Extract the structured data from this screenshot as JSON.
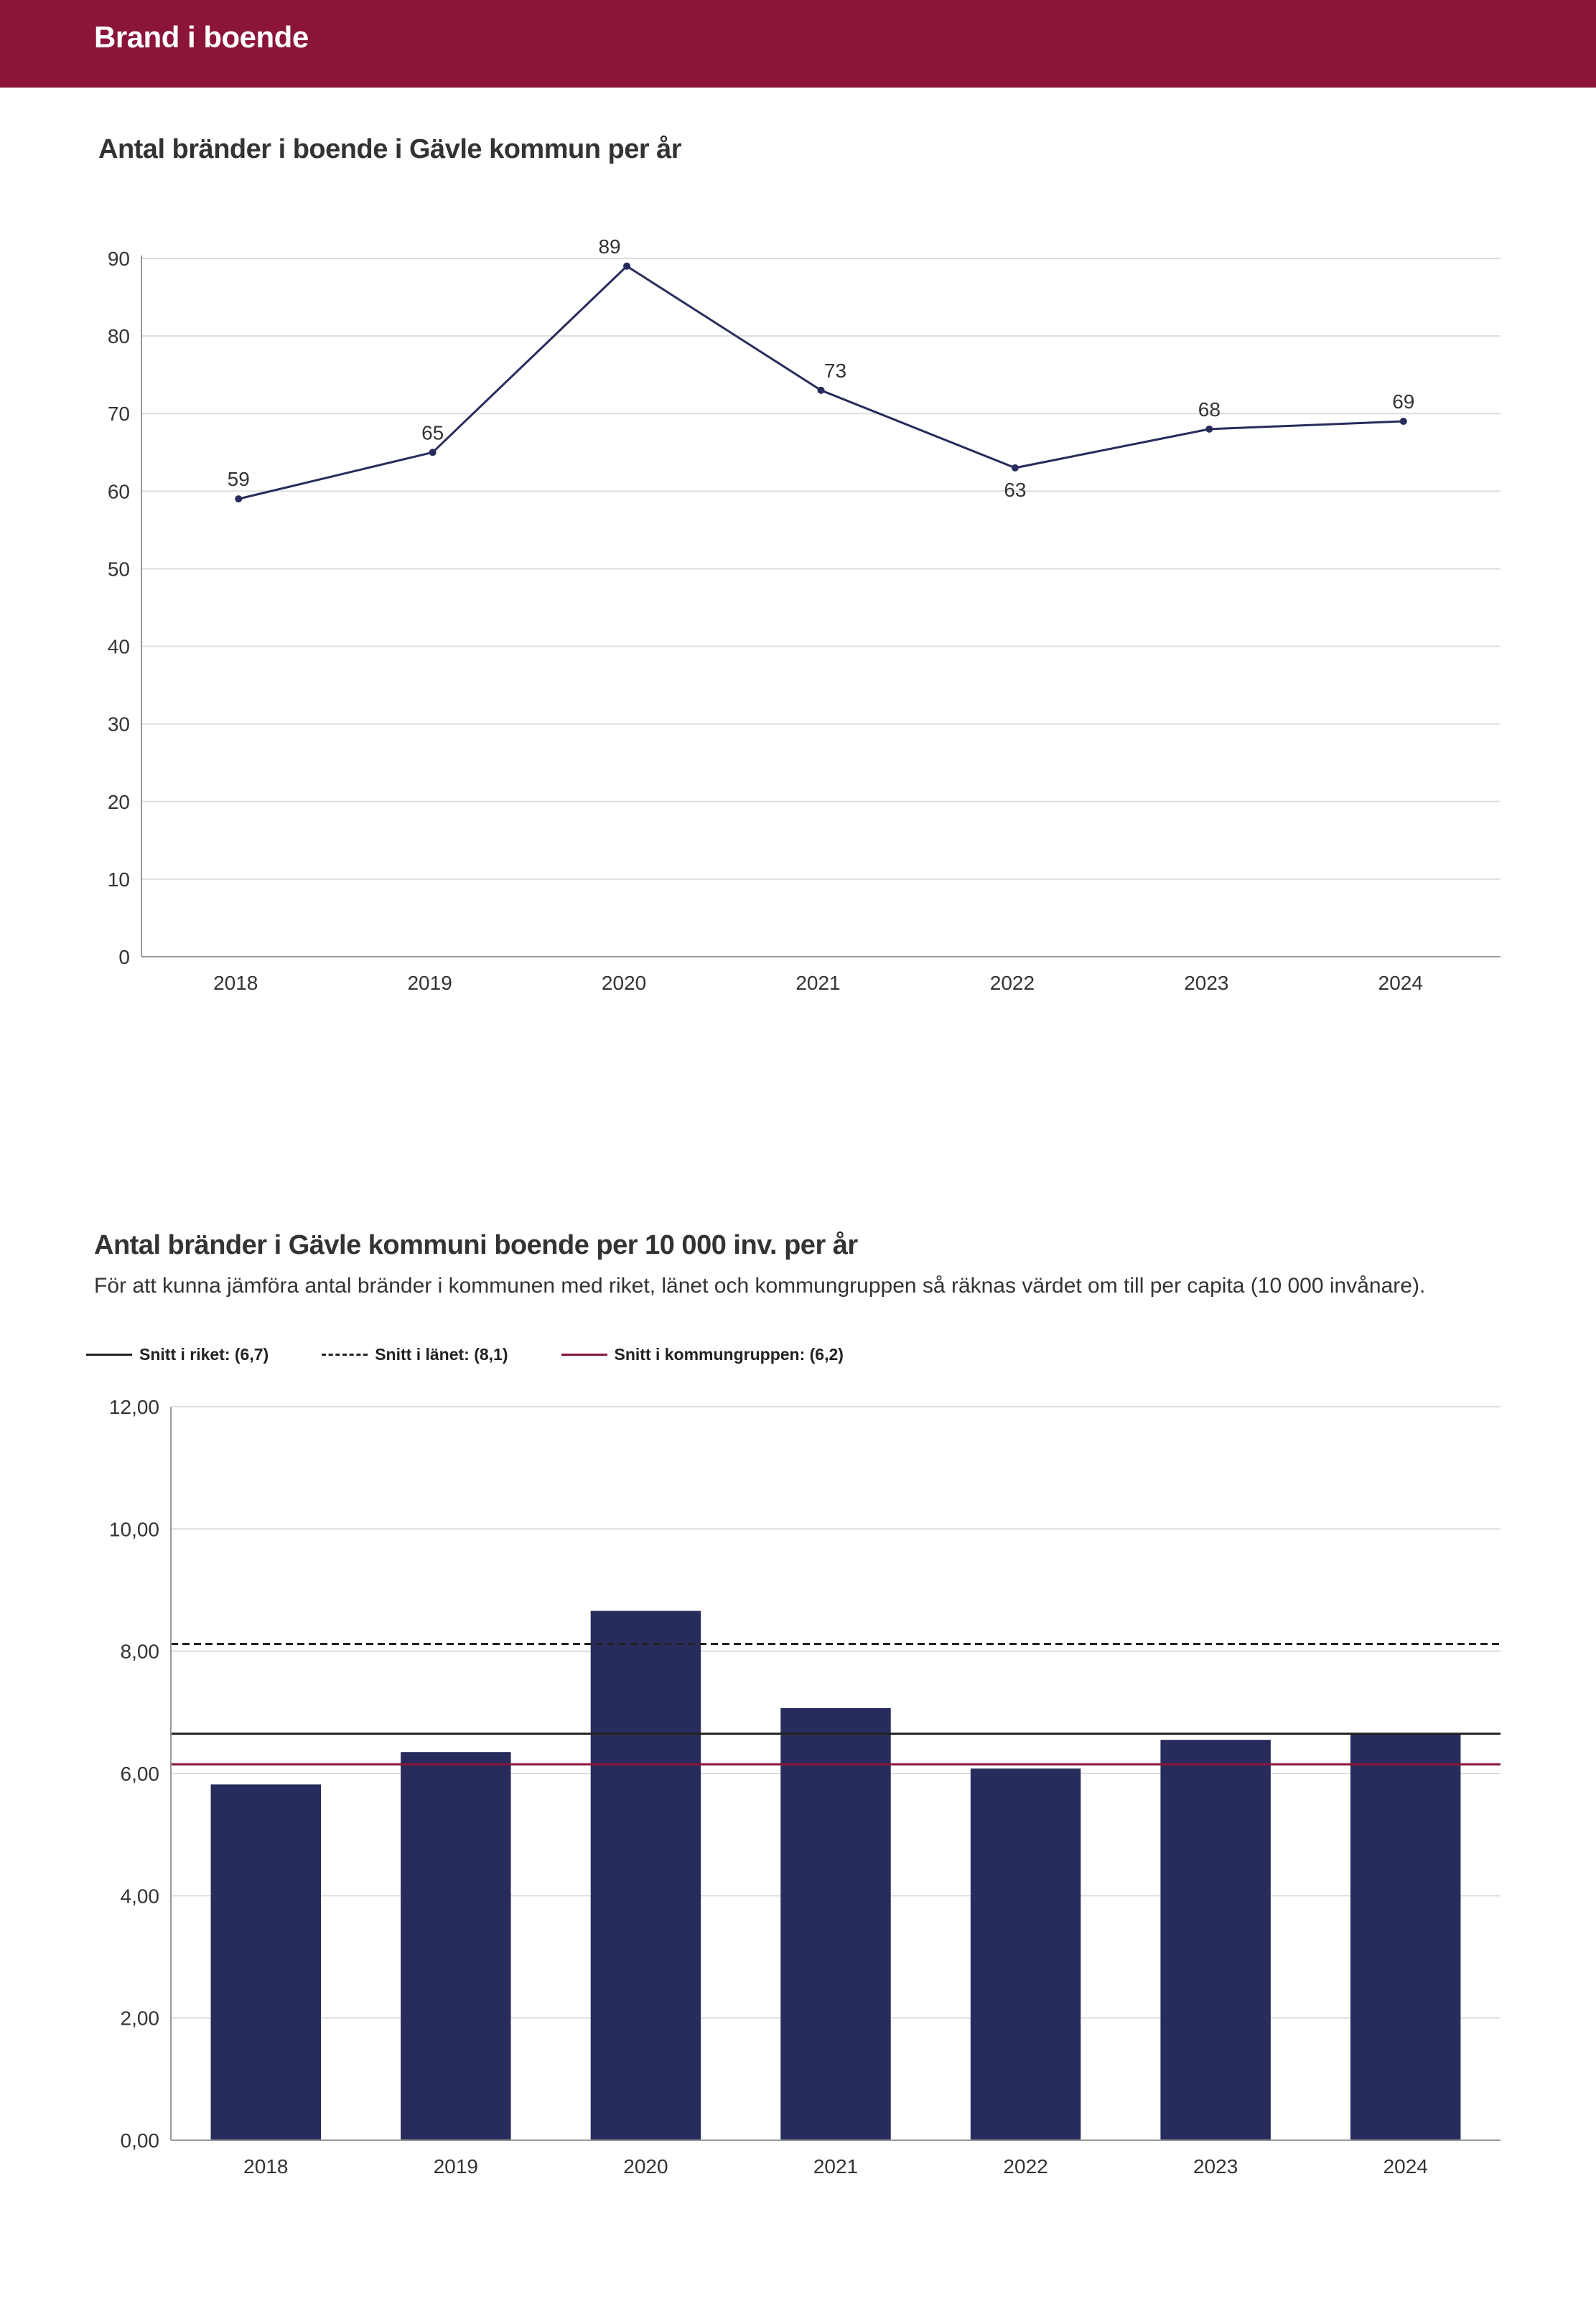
{
  "header": {
    "title": "Brand i boende"
  },
  "colors": {
    "brand": "#8b1538",
    "series": "#272c5c",
    "grid": "#dddddd",
    "axis": "#999999",
    "reference": "#222222"
  },
  "chart_data": [
    {
      "type": "line",
      "title": "Antal bränder i boende i Gävle kommun per år",
      "categories": [
        "2018",
        "2019",
        "2020",
        "2021",
        "2022",
        "2023",
        "2024"
      ],
      "values": [
        59,
        65,
        89,
        73,
        63,
        68,
        69
      ],
      "data_labels": [
        "59",
        "65",
        "89",
        "73",
        "63",
        "68",
        "69"
      ],
      "yticks": [
        "0",
        "10",
        "20",
        "30",
        "40",
        "50",
        "60",
        "70",
        "80",
        "90"
      ],
      "ylim": [
        0,
        90
      ],
      "xlabel": "",
      "ylabel": "",
      "grid": true
    },
    {
      "type": "bar",
      "title": "Antal bränder i Gävle kommuni boende per 10 000 inv. per år",
      "subtitle": "För att kunna jämföra antal bränder i kommunen med riket, länet och kommungruppen så räknas värdet om till per capita (10 000 invånare).",
      "categories": [
        "2018",
        "2019",
        "2020",
        "2021",
        "2022",
        "2023",
        "2024"
      ],
      "values": [
        5.82,
        6.35,
        8.66,
        7.07,
        6.08,
        6.55,
        6.65
      ],
      "yticks": [
        "0,00",
        "2,00",
        "4,00",
        "6,00",
        "8,00",
        "10,00",
        "12,00"
      ],
      "ylim": [
        0,
        12
      ],
      "xlabel": "",
      "ylabel": "",
      "grid": true,
      "reference_lines": [
        {
          "label": "Snitt i riket: (6,7)",
          "value": 6.65,
          "style": "solid",
          "color": "#222222"
        },
        {
          "label": "Snitt i länet: (8,1)",
          "value": 8.12,
          "style": "dashed",
          "color": "#222222"
        },
        {
          "label": "Snitt i kommungruppen: (6,2)",
          "value": 6.15,
          "style": "solid",
          "color": "#8b1538"
        }
      ]
    }
  ]
}
